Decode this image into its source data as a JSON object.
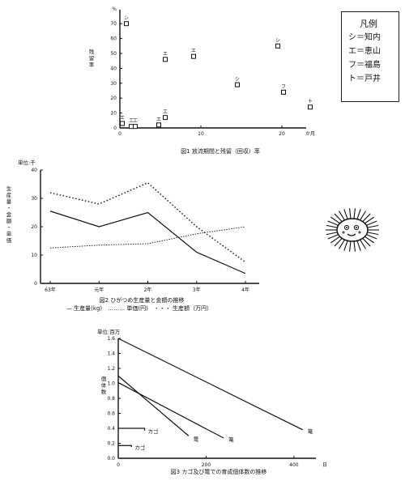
{
  "chart_data": [
    {
      "type": "scatter",
      "title": "図1 放流期間と残留（回収）率",
      "ylabel": "残留率",
      "y_unit": "%",
      "x_unit": "か月",
      "xlim": [
        0,
        24
      ],
      "ylim": [
        0,
        75
      ],
      "xticks": [
        "0",
        "10",
        "20"
      ],
      "yticks": [
        "0",
        "10",
        "20",
        "30",
        "40",
        "50",
        "60",
        "70"
      ],
      "points": [
        {
          "x": 0.3,
          "y": 3,
          "label": "エ"
        },
        {
          "x": 0.8,
          "y": 70,
          "label": "シ"
        },
        {
          "x": 1.4,
          "y": 1,
          "label": "エ"
        },
        {
          "x": 1.9,
          "y": 1,
          "label": "エ"
        },
        {
          "x": 4.8,
          "y": 2,
          "label": "エ"
        },
        {
          "x": 5.6,
          "y": 7,
          "label": "エ"
        },
        {
          "x": 5.6,
          "y": 46,
          "label": "エ"
        },
        {
          "x": 9.1,
          "y": 48,
          "label": "エ"
        },
        {
          "x": 14.5,
          "y": 29,
          "label": "シ"
        },
        {
          "x": 19.5,
          "y": 55,
          "label": "シ"
        },
        {
          "x": 20.2,
          "y": 24,
          "label": "フ"
        },
        {
          "x": 23.5,
          "y": 14,
          "label": "ト"
        }
      ],
      "legend": {
        "title": "凡例",
        "entries": [
          "シ＝知内",
          "エ＝恵山",
          "フ＝福島",
          "ト＝戸井"
        ]
      }
    },
    {
      "type": "line",
      "title": "図2 ひがつめ生産量と金額の推移",
      "unit_label": "単位:千",
      "ylabel": "生産量・金額・単価",
      "categories": [
        "63年",
        "元年",
        "2年",
        "3年",
        "4年"
      ],
      "ylim": [
        0,
        40
      ],
      "yticks": [
        "0",
        "10",
        "20",
        "30",
        "40"
      ],
      "series": [
        {
          "name": "生産量(kg)",
          "values": [
            25.5,
            20,
            25,
            11,
            3.5
          ]
        },
        {
          "name": "単価(円)",
          "values": [
            12.5,
            13.5,
            14,
            17.5,
            20
          ]
        },
        {
          "name": "生産額（万円）",
          "values": [
            32,
            28,
            35.5,
            20,
            7.5
          ]
        }
      ],
      "legend_text": "— 生産量(kg)　……… 単価(円)　・・・ 生産額（万円）"
    },
    {
      "type": "line",
      "title": "図3 カゴ及び篭での育成個体数の推移",
      "unit_label": "単位:百万",
      "ylabel": "個体数",
      "x_unit": "日",
      "xlim": [
        0,
        450
      ],
      "ylim": [
        0,
        1.6
      ],
      "xticks": [
        "0",
        "200",
        "400"
      ],
      "yticks": [
        "0.0",
        "0.2",
        "0.4",
        "0.6",
        "0.8",
        "1.0",
        "1.2",
        "1.4",
        "1.6"
      ],
      "series": [
        {
          "name": "篭",
          "x": [
            0,
            420
          ],
          "y": [
            1.6,
            0.38
          ]
        },
        {
          "name": "篭",
          "x": [
            0,
            240
          ],
          "y": [
            1.01,
            0.27
          ]
        },
        {
          "name": "篭",
          "x": [
            0,
            160
          ],
          "y": [
            1.1,
            0.3
          ]
        },
        {
          "name": "カゴ",
          "x": [
            0,
            60,
            60
          ],
          "y": [
            0.4,
            0.4,
            0.37
          ]
        },
        {
          "name": "カゴ",
          "x": [
            0,
            30,
            30
          ],
          "y": [
            0.17,
            0.17,
            0.15
          ]
        }
      ]
    }
  ]
}
